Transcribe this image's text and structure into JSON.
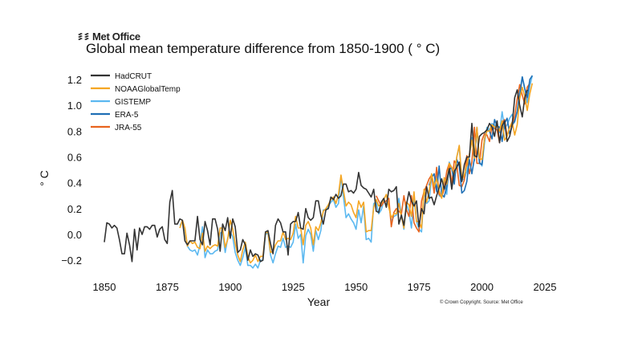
{
  "brand": {
    "logo_text": "Met Office"
  },
  "chart_data": {
    "type": "line",
    "title": "Global mean temperature difference from 1850-1900 ( ° C)",
    "xlabel": "Year",
    "ylabel": "° C",
    "xlim": [
      1845,
      2027
    ],
    "ylim": [
      -0.3,
      1.3
    ],
    "x_ticks": [
      1850,
      1875,
      1900,
      1925,
      1950,
      1975,
      2000,
      2025
    ],
    "x_tick_labels": [
      "1850",
      "1875",
      "1900",
      "1925",
      "1950",
      "1975",
      "2000",
      "2025"
    ],
    "y_ticks": [
      -0.2,
      0.0,
      0.2,
      0.4,
      0.6,
      0.8,
      1.0,
      1.2
    ],
    "y_tick_labels": [
      "−0.2",
      "0.0",
      "0.2",
      "0.4",
      "0.6",
      "0.8",
      "1.0",
      "1.2"
    ],
    "grid": false,
    "legend_position": "top-left",
    "series": [
      {
        "name": "HadCRUT",
        "color": "#333333",
        "start_year": 1850,
        "values": [
          -0.06,
          0.09,
          0.08,
          0.05,
          0.07,
          0.05,
          -0.04,
          -0.15,
          -0.15,
          0.01,
          -0.08,
          -0.21,
          0.04,
          -0.12,
          0.05,
          0.0,
          0.06,
          0.06,
          0.04,
          0.07,
          0.07,
          -0.02,
          0.04,
          0.06,
          -0.04,
          -0.07,
          0.25,
          0.34,
          0.08,
          0.08,
          0.12,
          0.11,
          -0.05,
          -0.08,
          -0.05,
          -0.05,
          -0.05,
          0.14,
          -0.04,
          -0.08,
          0.1,
          0.03,
          -0.08,
          0.12,
          0.12,
          0.04,
          -0.13,
          0.08,
          0.03,
          0.13,
          -0.03,
          0.12,
          0.06,
          -0.14,
          -0.12,
          -0.04,
          -0.08,
          -0.2,
          -0.12,
          -0.17,
          -0.15,
          -0.16,
          -0.21,
          -0.2,
          0.02,
          0.03,
          -0.07,
          -0.15,
          0.07,
          0.12,
          0.09,
          0.02,
          0.02,
          -0.16,
          0.08,
          0.1,
          0.1,
          0.17,
          0.05,
          0.04,
          0.2,
          0.13,
          0.11,
          0.13,
          0.26,
          0.26,
          0.15,
          0.08,
          0.19,
          0.2,
          0.29,
          0.27,
          0.31,
          0.28,
          0.3,
          0.39,
          0.39,
          0.33,
          0.34,
          0.32,
          0.35,
          0.48,
          0.38,
          0.36,
          0.35,
          0.32,
          0.29,
          0.35,
          0.18,
          0.17,
          0.25,
          0.28,
          0.21,
          0.35,
          0.33,
          0.34,
          0.37,
          0.08,
          0.15,
          0.07,
          0.23,
          0.33,
          0.26,
          0.22,
          0.26,
          0.06,
          0.2,
          0.16,
          0.37,
          0.28,
          0.29,
          0.23,
          0.3,
          0.36,
          0.43,
          0.35,
          0.42,
          0.51,
          0.35,
          0.49,
          0.52,
          0.56,
          0.41,
          0.54,
          0.6,
          0.6,
          0.86,
          0.61,
          0.6,
          0.76,
          0.78,
          0.79,
          0.81,
          0.86,
          0.83,
          0.76,
          0.88,
          0.71,
          0.84,
          0.88,
          0.72,
          0.76,
          0.85,
          1.06,
          1.12,
          1.0,
          0.91,
          1.06,
          1.12
        ]
      },
      {
        "name": "NOAAGlobalTemp",
        "color": "#f5a623",
        "start_year": 1880,
        "values": [
          0.05,
          0.11,
          0.05,
          -0.09,
          -0.05,
          -0.07,
          -0.06,
          -0.1,
          -0.11,
          0.01,
          -0.13,
          -0.09,
          -0.11,
          -0.09,
          -0.08,
          -0.09,
          0.05,
          0.05,
          -0.1,
          -0.04,
          0.11,
          0.04,
          -0.07,
          -0.16,
          -0.21,
          -0.12,
          -0.06,
          -0.17,
          -0.22,
          -0.2,
          -0.16,
          -0.21,
          -0.17,
          -0.17,
          0.01,
          0.02,
          -0.14,
          -0.13,
          -0.08,
          -0.05,
          -0.05,
          0.02,
          -0.04,
          -0.03,
          -0.04,
          0.01,
          0.14,
          0.05,
          0.05,
          -0.08,
          0.07,
          0.1,
          0.05,
          -0.08,
          0.06,
          0.03,
          0.09,
          0.18,
          0.2,
          0.23,
          0.27,
          0.29,
          0.24,
          0.31,
          0.46,
          0.34,
          0.22,
          0.25,
          0.23,
          0.17,
          0.13,
          0.26,
          0.21,
          0.25,
          0.02,
          0.03,
          0.03,
          0.21,
          0.27,
          0.22,
          0.24,
          0.27,
          0.31,
          0.21,
          0.13,
          0.16,
          0.16,
          0.24,
          0.14,
          0.05,
          0.25,
          0.23,
          0.14,
          0.33,
          0.1,
          0.1,
          0.05,
          0.35,
          0.25,
          0.33,
          0.47,
          0.37,
          0.43,
          0.34,
          0.28,
          0.44,
          0.39,
          0.55,
          0.52,
          0.47,
          0.6,
          0.69,
          0.42,
          0.46,
          0.54,
          0.62,
          0.73,
          0.59,
          0.83,
          0.59,
          0.58,
          0.74,
          0.8,
          0.8,
          0.85,
          0.83,
          0.84,
          0.8,
          0.88,
          0.73,
          0.76,
          0.83,
          0.87,
          0.77,
          0.85,
          1.05,
          1.14,
          1.07,
          0.96,
          1.09,
          1.17
        ]
      },
      {
        "name": "GISTEMP",
        "color": "#5bb8f0",
        "start_year": 1880,
        "values": [
          0.07,
          0.1,
          0.03,
          -0.09,
          -0.12,
          -0.13,
          -0.12,
          -0.16,
          -0.08,
          0.06,
          -0.18,
          -0.12,
          -0.15,
          -0.15,
          -0.13,
          -0.12,
          0.01,
          0.02,
          -0.14,
          -0.03,
          0.02,
          -0.02,
          -0.14,
          -0.2,
          -0.24,
          -0.18,
          -0.1,
          -0.24,
          -0.24,
          -0.26,
          -0.23,
          -0.26,
          -0.2,
          -0.2,
          0.0,
          0.01,
          -0.16,
          -0.22,
          -0.15,
          -0.09,
          -0.1,
          -0.03,
          -0.1,
          -0.09,
          -0.1,
          -0.06,
          0.08,
          -0.03,
          0.0,
          -0.22,
          -0.01,
          0.04,
          0.0,
          -0.13,
          0.03,
          -0.04,
          0.03,
          0.19,
          0.19,
          0.22,
          0.25,
          0.27,
          0.21,
          0.24,
          0.45,
          0.29,
          0.13,
          0.16,
          0.12,
          0.09,
          0.04,
          0.19,
          0.09,
          0.22,
          -0.04,
          -0.03,
          -0.06,
          0.24,
          0.25,
          0.16,
          0.19,
          0.26,
          0.23,
          0.24,
          0.1,
          0.14,
          0.15,
          0.28,
          0.15,
          0.04,
          0.23,
          0.18,
          0.05,
          0.3,
          0.1,
          0.04,
          0.02,
          0.34,
          0.24,
          0.26,
          0.44,
          0.39,
          0.47,
          0.3,
          0.29,
          0.42,
          0.31,
          0.56,
          0.51,
          0.41,
          0.6,
          0.68,
          0.42,
          0.43,
          0.49,
          0.6,
          0.75,
          0.57,
          0.82,
          0.57,
          0.53,
          0.71,
          0.83,
          0.81,
          0.86,
          0.84,
          0.86,
          0.79,
          0.95,
          0.82,
          0.85,
          0.9,
          0.93,
          0.87,
          0.96,
          1.11,
          1.22,
          1.13,
          1.02,
          1.15,
          1.23
        ]
      },
      {
        "name": "ERA-5",
        "color": "#1f6fb5",
        "start_year": 1979,
        "values": [
          0.38,
          0.44,
          0.47,
          0.33,
          0.53,
          0.31,
          0.29,
          0.37,
          0.5,
          0.52,
          0.39,
          0.58,
          0.53,
          0.32,
          0.34,
          0.41,
          0.58,
          0.47,
          0.59,
          0.83,
          0.55,
          0.54,
          0.74,
          0.81,
          0.8,
          0.74,
          0.89,
          0.84,
          0.83,
          0.72,
          0.86,
          0.9,
          0.78,
          0.84,
          0.88,
          0.95,
          1.07,
          1.22,
          1.13,
          1.06,
          1.2,
          1.23
        ]
      },
      {
        "name": "JRA-55",
        "color": "#e8641e",
        "start_year": 1958,
        "values": [
          0.3,
          0.26,
          0.22,
          0.25,
          0.26,
          0.28,
          0.06,
          0.17,
          0.2,
          0.18,
          0.16,
          0.3,
          0.19,
          0.14,
          0.3,
          0.09,
          0.05,
          0.02,
          0.26,
          0.33,
          0.38,
          0.43,
          0.46,
          0.32,
          0.52,
          0.31,
          0.29,
          0.35,
          0.49,
          0.55,
          0.39,
          0.57,
          0.54,
          0.38,
          0.37,
          0.42,
          0.61,
          0.47,
          0.56,
          0.83,
          0.55,
          0.55,
          0.73,
          0.78,
          0.77,
          0.72,
          0.84,
          0.82,
          0.81,
          0.71,
          0.86,
          0.89,
          0.76,
          0.83,
          0.85,
          0.92,
          1.05,
          1.16,
          1.08,
          1.01,
          1.14,
          1.17
        ]
      }
    ]
  },
  "footer": {
    "copyright": "© Crown Copyright. Source: Met Office"
  }
}
